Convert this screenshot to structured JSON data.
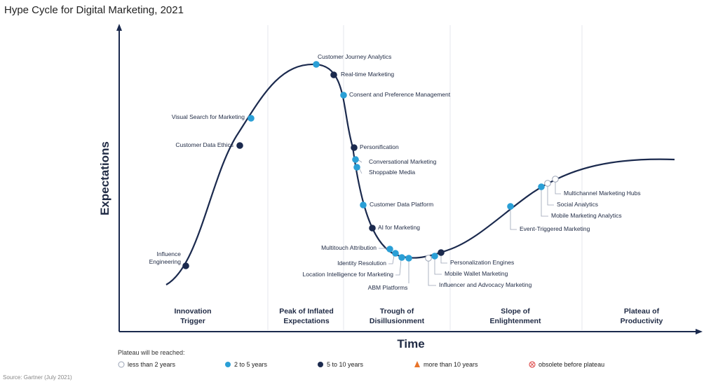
{
  "title": "Hype Cycle for Digital Marketing, 2021",
  "axes": {
    "y_label": "Expectations",
    "x_label": "Time"
  },
  "phases": [
    {
      "key": "innovation",
      "line1": "Innovation",
      "line2": "Trigger"
    },
    {
      "key": "peak",
      "line1": "Peak of Inflated",
      "line2": "Expectations"
    },
    {
      "key": "trough",
      "line1": "Trough of",
      "line2": "Disillusionment"
    },
    {
      "key": "slope",
      "line1": "Slope of",
      "line2": "Enlightenment"
    },
    {
      "key": "plateau",
      "line1": "Plateau of",
      "line2": "Productivity"
    }
  ],
  "technologies": [
    {
      "name": "Influence\nEngineering",
      "category": "5to10"
    },
    {
      "name": "Customer Data Ethics",
      "category": "5to10"
    },
    {
      "name": "Visual Search for Marketing",
      "category": "2to5"
    },
    {
      "name": "Customer Journey Analytics",
      "category": "2to5"
    },
    {
      "name": "Real-time Marketing",
      "category": "5to10"
    },
    {
      "name": "Consent and Preference Management",
      "category": "2to5"
    },
    {
      "name": "Personification",
      "category": "5to10"
    },
    {
      "name": "Conversational Marketing",
      "category": "2to5"
    },
    {
      "name": "Shoppable Media",
      "category": "2to5"
    },
    {
      "name": "Customer Data Platform",
      "category": "2to5"
    },
    {
      "name": "AI for Marketing",
      "category": "5to10"
    },
    {
      "name": "Multitouch Attribution",
      "category": "2to5"
    },
    {
      "name": "Identity Resolution",
      "category": "2to5"
    },
    {
      "name": "Location Intelligence for Marketing",
      "category": "2to5"
    },
    {
      "name": "ABM Platforms",
      "category": "2to5"
    },
    {
      "name": "Personalization Engines",
      "category": "5to10"
    },
    {
      "name": "Mobile Wallet Marketing",
      "category": "2to5"
    },
    {
      "name": "Influencer and Advocacy Marketing",
      "category": "less2"
    },
    {
      "name": "Event-Triggered Marketing",
      "category": "2to5"
    },
    {
      "name": "Mobile Marketing Analytics",
      "category": "2to5"
    },
    {
      "name": "Social Analytics",
      "category": "less2"
    },
    {
      "name": "Multichannel Marketing Hubs",
      "category": "less2"
    }
  ],
  "legend": {
    "heading": "Plateau will be reached:",
    "items": [
      {
        "key": "less2",
        "label": "less than 2 years",
        "symbol": "hollow-circle",
        "color": "#ffffff"
      },
      {
        "key": "2to5",
        "label": "2 to 5 years",
        "symbol": "circle",
        "color": "#2a9fd6"
      },
      {
        "key": "5to10",
        "label": "5 to 10 years",
        "symbol": "circle",
        "color": "#1b2a4e"
      },
      {
        "key": "more10",
        "label": "more than 10 years",
        "symbol": "triangle",
        "color": "#e8742a"
      },
      {
        "key": "obsolete",
        "label": "obsolete before plateau",
        "symbol": "crossed-circle",
        "color": "#e05a5a"
      }
    ]
  },
  "source": "Source: Gartner (July 2021)",
  "colors": {
    "curve": "#1b2a4e",
    "axis": "#1b2a4e",
    "text": "#1f2a44"
  }
}
